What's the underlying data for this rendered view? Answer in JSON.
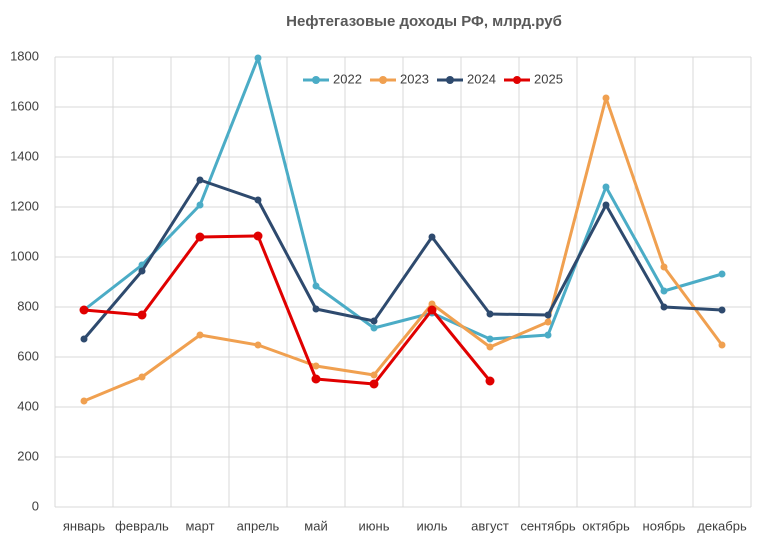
{
  "chart_data": {
    "type": "line",
    "title": "Нефтегазовые доходы РФ, млрд.руб",
    "categories": [
      "январь",
      "февраль",
      "март",
      "апрель",
      "май",
      "июнь",
      "июль",
      "август",
      "сентябрь",
      "октябрь",
      "ноябрь",
      "декабрь"
    ],
    "series": [
      {
        "name": "2022",
        "color": "#4bacc6",
        "values": [
          788,
          968,
          1208,
          1796,
          884,
          716,
          776,
          672,
          688,
          1280,
          864,
          932
        ]
      },
      {
        "name": "2023",
        "color": "#f0a050",
        "values": [
          424,
          520,
          688,
          648,
          564,
          528,
          812,
          640,
          740,
          1636,
          960,
          648
        ]
      },
      {
        "name": "2024",
        "color": "#2e4a6e",
        "values": [
          672,
          944,
          1308,
          1228,
          792,
          744,
          1080,
          772,
          768,
          1208,
          800,
          788
        ]
      },
      {
        "name": "2025",
        "color": "#e00000",
        "values": [
          788,
          768,
          1080,
          1084,
          512,
          492,
          788,
          504,
          null,
          null,
          null,
          null
        ]
      }
    ],
    "ylim": [
      0,
      1800
    ],
    "yticks": [
      0,
      200,
      400,
      600,
      800,
      1000,
      1200,
      1400,
      1600,
      1800
    ],
    "grid": true,
    "legend": "top"
  }
}
